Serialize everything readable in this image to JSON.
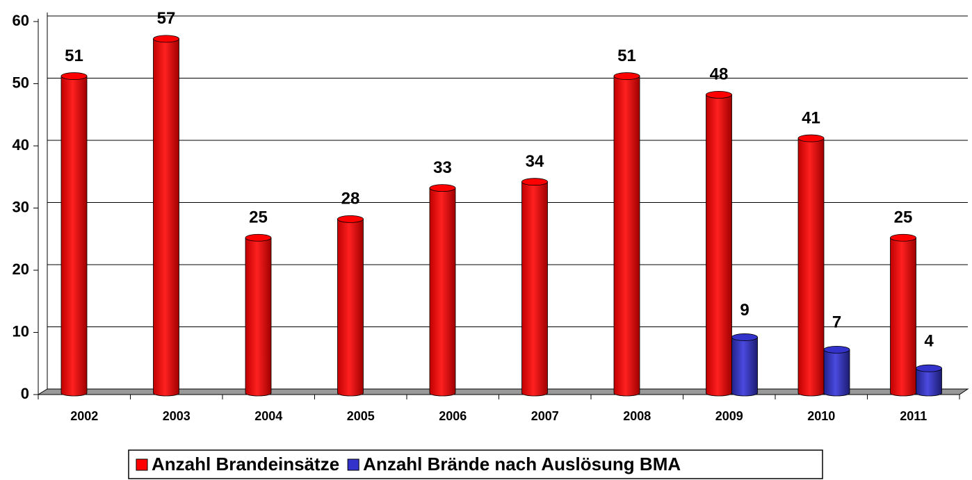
{
  "chart_data": {
    "type": "bar",
    "categories": [
      "2002",
      "2003",
      "2004",
      "2005",
      "2006",
      "2007",
      "2008",
      "2009",
      "2010",
      "2011"
    ],
    "series": [
      {
        "name": "Anzahl Brandeinsätze",
        "color": "#ff0000",
        "values": [
          51,
          57,
          25,
          28,
          33,
          34,
          51,
          48,
          41,
          25
        ]
      },
      {
        "name": "Anzahl Brände nach Auslösung BMA",
        "color": "#3333cc",
        "values": [
          null,
          null,
          null,
          null,
          null,
          null,
          null,
          9,
          7,
          4
        ]
      }
    ],
    "ylim": [
      0,
      60
    ],
    "yticks": [
      0,
      10,
      20,
      30,
      40,
      50,
      60
    ],
    "grid": true,
    "legend": "bottom"
  }
}
